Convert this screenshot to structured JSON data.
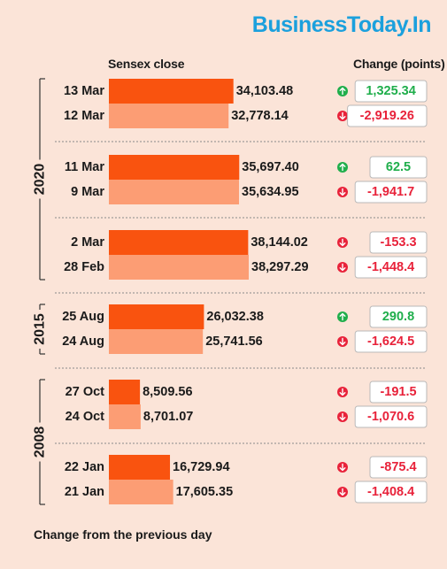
{
  "brand": "BusinessToday.In",
  "header_left": "Sensex close",
  "header_right": "Change (points)",
  "footer": "Change from the previous day",
  "colors": {
    "bar_primary": "#f9530f",
    "bar_secondary": "#fc9d74",
    "up": "#1fae4b",
    "down": "#e8223a",
    "background": "#fbe4d8"
  },
  "chart_data": {
    "type": "bar",
    "title": "",
    "series_label": "Sensex close",
    "change_label": "Change (points)",
    "groups": [
      {
        "year": "2020",
        "rows": [
          {
            "date": "13 Mar",
            "close": 34103.48,
            "close_label": "34,103.48",
            "change": 1325.34,
            "change_label": "1,325.34"
          },
          {
            "date": "12 Mar",
            "close": 32778.14,
            "close_label": "32,778.14",
            "change": -2919.26,
            "change_label": "-2,919.26"
          },
          {
            "date": "11 Mar",
            "close": 35697.4,
            "close_label": "35,697.40",
            "change": 62.5,
            "change_label": "62.5"
          },
          {
            "date": "9 Mar",
            "close": 35634.95,
            "close_label": "35,634.95",
            "change": -1941.7,
            "change_label": "-1,941.7"
          },
          {
            "date": "2 Mar",
            "close": 38144.02,
            "close_label": "38,144.02",
            "change": -153.3,
            "change_label": "-153.3"
          },
          {
            "date": "28 Feb",
            "close": 38297.29,
            "close_label": "38,297.29",
            "change": -1448.4,
            "change_label": "-1,448.4"
          }
        ]
      },
      {
        "year": "2015",
        "rows": [
          {
            "date": "25 Aug",
            "close": 26032.38,
            "close_label": "26,032.38",
            "change": 290.8,
            "change_label": "290.8"
          },
          {
            "date": "24 Aug",
            "close": 25741.56,
            "close_label": "25,741.56",
            "change": -1624.5,
            "change_label": "-1,624.5"
          }
        ]
      },
      {
        "year": "2008",
        "rows": [
          {
            "date": "27 Oct",
            "close": 8509.56,
            "close_label": "8,509.56",
            "change": -191.5,
            "change_label": "-191.5"
          },
          {
            "date": "24 Oct",
            "close": 8701.07,
            "close_label": "8,701.07",
            "change": -1070.6,
            "change_label": "-1,070.6"
          },
          {
            "date": "22 Jan",
            "close": 16729.94,
            "close_label": "16,729.94",
            "change": -875.4,
            "change_label": "-875.4"
          },
          {
            "date": "21 Jan",
            "close": 17605.35,
            "close_label": "17,605.35",
            "change": -1408.4,
            "change_label": "-1,408.4"
          }
        ]
      }
    ]
  }
}
